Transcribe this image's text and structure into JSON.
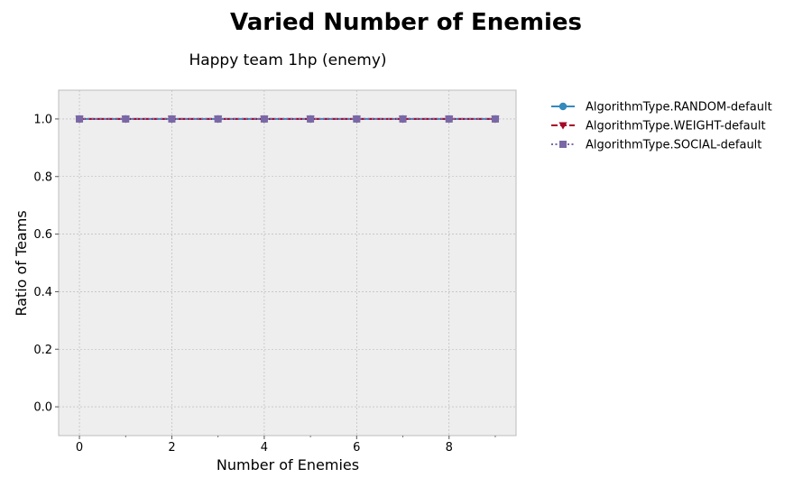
{
  "chart_data": {
    "type": "line",
    "title": "Varied Number of Enemies",
    "subtitle": "Happy team 1hp (enemy)",
    "xlabel": "Number of Enemies",
    "ylabel": "Ratio of Teams",
    "xlim": [
      -0.45,
      9.45
    ],
    "ylim": [
      -0.1,
      1.1
    ],
    "xticks": [
      0,
      2,
      4,
      6,
      8
    ],
    "xtick_labels": [
      "0",
      "2",
      "4",
      "6",
      "8"
    ],
    "yticks": [
      0.0,
      0.2,
      0.4,
      0.6,
      0.8,
      1.0
    ],
    "ytick_labels": [
      "0.0",
      "0.2",
      "0.4",
      "0.6",
      "0.8",
      "1.0"
    ],
    "x_minor_ticks": [
      1,
      3,
      5,
      7,
      9
    ],
    "grid": true,
    "legend_position": "outside-right",
    "x": [
      0,
      1,
      2,
      3,
      4,
      5,
      6,
      7,
      8,
      9
    ],
    "series": [
      {
        "name": "AlgorithmType.RANDOM-default",
        "values": [
          1,
          1,
          1,
          1,
          1,
          1,
          1,
          1,
          1,
          1
        ],
        "color": "#348abd",
        "marker": "circle",
        "linestyle": "solid"
      },
      {
        "name": "AlgorithmType.WEIGHT-default",
        "values": [
          1,
          1,
          1,
          1,
          1,
          1,
          1,
          1,
          1,
          1
        ],
        "color": "#a60628",
        "marker": "triangle-down",
        "linestyle": "dashed"
      },
      {
        "name": "AlgorithmType.SOCIAL-default",
        "values": [
          1,
          1,
          1,
          1,
          1,
          1,
          1,
          1,
          1,
          1
        ],
        "color": "#7a68a6",
        "marker": "square",
        "linestyle": "dotted"
      }
    ]
  },
  "colors": {
    "plot_background": "#eeeeee",
    "grid": "#b2b2b2",
    "axes_edge": "#bcbcbc"
  }
}
